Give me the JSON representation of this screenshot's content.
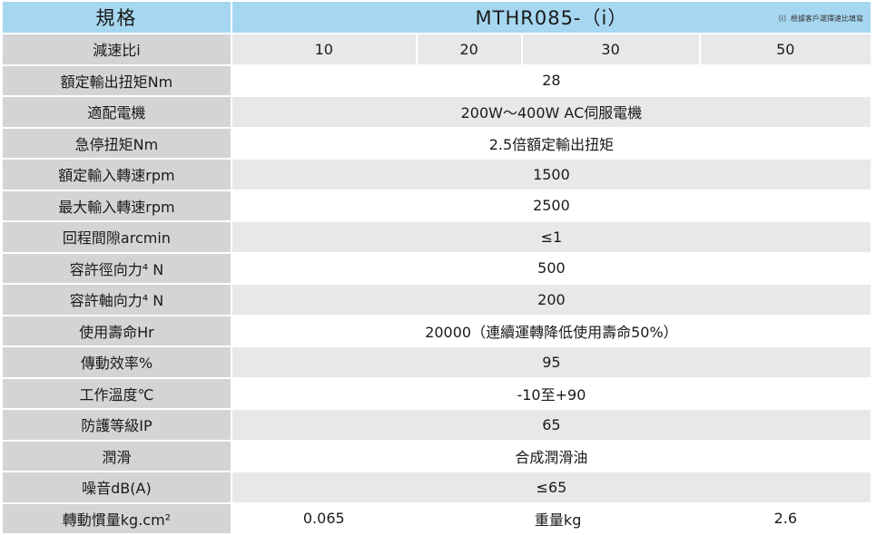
{
  "header": {
    "label": "規格",
    "model": "MTHR085-（i）",
    "model_note": "（i）根據客戶選擇速比填寫"
  },
  "ratio_row": {
    "label": "減速比i",
    "values": [
      "10",
      "20",
      "30",
      "50"
    ]
  },
  "rows": [
    {
      "label": "額定輸出扭矩Nm",
      "value": "28"
    },
    {
      "label": "適配電機",
      "value": "200W～400W AC伺服電機"
    },
    {
      "label": "急停扭矩Nm",
      "value": "2.5倍額定輸出扭矩"
    },
    {
      "label": "額定輸入轉速rpm",
      "value": "1500"
    },
    {
      "label": "最大輸入轉速rpm",
      "value": "2500"
    },
    {
      "label": "回程間隙arcmin",
      "value": "≤1"
    },
    {
      "label": "容許徑向力⁴ N",
      "value": "500"
    },
    {
      "label": "容許軸向力⁴ N",
      "value": "200"
    },
    {
      "label": "使用壽命Hr",
      "value": "20000（連續運轉降低使用壽命50%）"
    },
    {
      "label": "傳動效率%",
      "value": "95"
    },
    {
      "label": "工作溫度℃",
      "value": "-10至+90"
    },
    {
      "label": "防護等級IP",
      "value": "65"
    },
    {
      "label": "潤滑",
      "value": "合成潤滑油"
    },
    {
      "label": "噪音dB(A)",
      "value": "≤65"
    }
  ],
  "last_row": {
    "label": "轉動慣量kg.cm²",
    "inertia_value": "0.065",
    "weight_label": "重量kg",
    "weight_value": "2.6"
  }
}
